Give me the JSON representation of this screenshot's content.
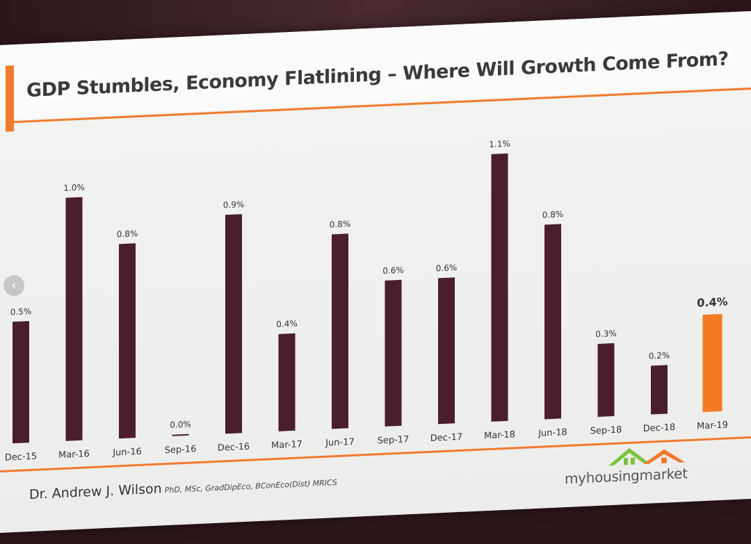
{
  "slide": {
    "title": "GDP Stumbles, Economy Flatlining – Where Will Growth Come From?",
    "author": "Dr. Andrew J. Wilson",
    "author_quals": "PhD, MSc, GradDipEco, BConEco(Dist) MRICS",
    "logo_text": "myhousingmarket"
  },
  "colors": {
    "bar": "#4a1e2a",
    "highlight_bar": "#f47a22",
    "accent": "#f07a2b"
  },
  "chart_data": {
    "type": "bar",
    "title": "GDP Stumbles, Economy Flatlining – Where Will Growth Come From?",
    "categories": [
      "Dec-15",
      "Mar-16",
      "Jun-16",
      "Sep-16",
      "Dec-16",
      "Mar-17",
      "Jun-17",
      "Sep-17",
      "Dec-17",
      "Mar-18",
      "Jun-18",
      "Sep-18",
      "Dec-18",
      "Mar-19"
    ],
    "values": [
      0.5,
      1.0,
      0.8,
      0.0,
      0.9,
      0.4,
      0.8,
      0.6,
      0.6,
      1.1,
      0.8,
      0.3,
      0.2,
      0.4
    ],
    "data_labels": [
      "0.5%",
      "1.0%",
      "0.8%",
      "0.0%",
      "0.9%",
      "0.4%",
      "0.8%",
      "0.6%",
      "0.6%",
      "1.1%",
      "0.8%",
      "0.3%",
      "0.2%",
      "0.4%"
    ],
    "highlight_index": 13,
    "ylim": [
      0,
      1.2
    ],
    "grid": false,
    "legend": "none"
  }
}
